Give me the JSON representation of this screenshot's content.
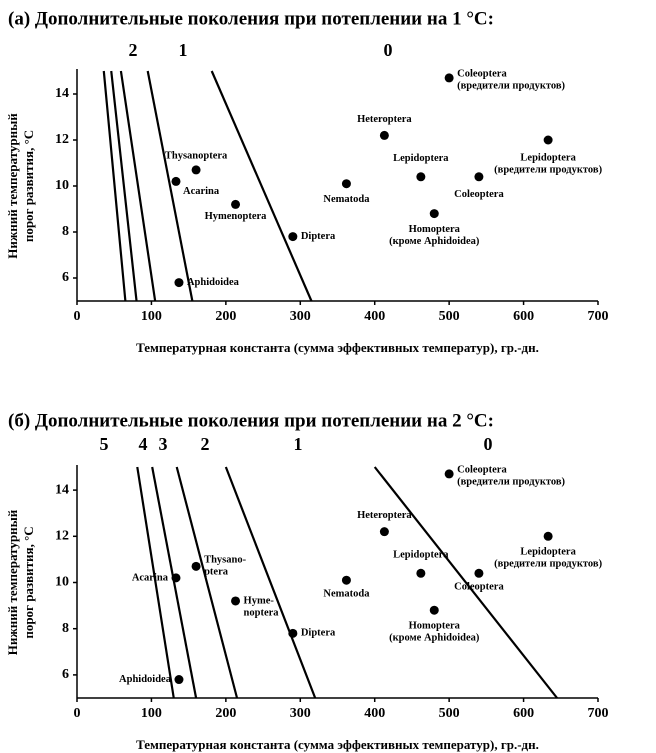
{
  "chart_data": [
    {
      "type": "scatter",
      "title": "(а)  Дополнительные поколения при потеплении на 1 °C:",
      "region_labels": [
        "2",
        "1",
        "0"
      ],
      "xlabel": "Температурная константа (сумма эффективных температур), гр.-дн.",
      "ylabel": [
        "Нижний температурный",
        "порог развития, °C"
      ],
      "xlim": [
        0,
        700
      ],
      "xticks": [
        0,
        100,
        200,
        300,
        400,
        500,
        600,
        700
      ],
      "ylim": [
        5,
        15
      ],
      "yticks": [
        6,
        8,
        10,
        12,
        14
      ],
      "color": "#000000",
      "x": [
        500,
        413,
        633,
        160,
        133,
        462,
        540,
        362,
        213,
        480,
        290,
        137
      ],
      "values": [
        14.7,
        12.2,
        12.0,
        10.7,
        10.2,
        10.4,
        10.4,
        10.1,
        9.2,
        8.8,
        7.8,
        5.8
      ],
      "labels": [
        [
          "Coleoptera",
          "(вредители продуктов)"
        ],
        [
          "Heteroptera"
        ],
        [
          "Lepidoptera",
          "(вредители продуктов)"
        ],
        [
          "Thysanoptera"
        ],
        [
          "Acarina"
        ],
        [
          "Lepidoptera"
        ],
        [
          "Coleoptera"
        ],
        [
          "Nematoda"
        ],
        [
          "Hymenoptera"
        ],
        [
          "Homoptera",
          "(кроме Aphidoidea)"
        ],
        [
          "Diptera"
        ],
        [
          "Aphidoidea"
        ]
      ],
      "lines": [
        {
          "x": [
            36,
            65
          ],
          "values": [
            15,
            5
          ]
        },
        {
          "x": [
            46,
            80
          ],
          "values": [
            15,
            5
          ]
        },
        {
          "x": [
            59,
            105
          ],
          "values": [
            15,
            5
          ]
        },
        {
          "x": [
            95,
            155
          ],
          "values": [
            15,
            5
          ]
        },
        {
          "x": [
            181,
            315
          ],
          "values": [
            15,
            5
          ]
        }
      ]
    },
    {
      "type": "scatter",
      "title": "(б)  Дополнительные поколения при потеплении на 2 °C:",
      "region_labels": [
        "5",
        "4",
        "3",
        "2",
        "1",
        "0"
      ],
      "xlabel": "Температурная константа (сумма эффективных температур), гр.-дн.",
      "ylabel": [
        "Нижний температурный",
        "порог развития, °C"
      ],
      "xlim": [
        0,
        700
      ],
      "xticks": [
        0,
        100,
        200,
        300,
        400,
        500,
        600,
        700
      ],
      "ylim": [
        5,
        15
      ],
      "yticks": [
        6,
        8,
        10,
        12,
        14
      ],
      "color": "#000000",
      "x": [
        500,
        413,
        633,
        160,
        133,
        462,
        540,
        362,
        213,
        480,
        290,
        137
      ],
      "values": [
        14.7,
        12.2,
        12.0,
        10.7,
        10.2,
        10.4,
        10.4,
        10.1,
        9.2,
        8.8,
        7.8,
        5.8
      ],
      "labels": [
        [
          "Coleoptera",
          "(вредители продуктов)"
        ],
        [
          "Heteroptera"
        ],
        [
          "Lepidoptera",
          "(вредители продуктов)"
        ],
        [
          "Thysano-",
          "ptera"
        ],
        [
          "Acarina"
        ],
        [
          "Lepidoptera"
        ],
        [
          "Coleoptera"
        ],
        [
          "Nematoda"
        ],
        [
          "Hyme-",
          "noptera"
        ],
        [
          "Homoptera",
          "(кроме Aphidoidea)"
        ],
        [
          "Diptera"
        ],
        [
          "Aphidoidea"
        ]
      ],
      "lines": [
        {
          "x": [
            81,
            130
          ],
          "values": [
            15,
            5
          ]
        },
        {
          "x": [
            101,
            160
          ],
          "values": [
            15,
            5
          ]
        },
        {
          "x": [
            134,
            215
          ],
          "values": [
            15,
            5
          ]
        },
        {
          "x": [
            200,
            320
          ],
          "values": [
            15,
            5
          ]
        },
        {
          "x": [
            400,
            645
          ],
          "values": [
            15,
            5
          ]
        }
      ]
    }
  ]
}
